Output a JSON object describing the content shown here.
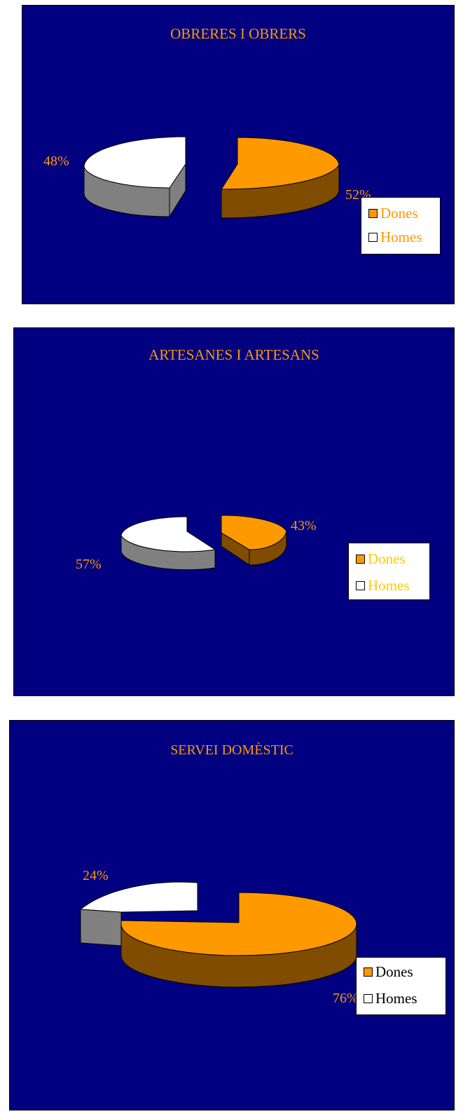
{
  "colors": {
    "background": "#000080",
    "dones_top": "#FF9900",
    "dones_side": "#7F4C00",
    "homes_top": "#FFFFFF",
    "homes_side": "#808080",
    "accent_text": "#FF9900",
    "label_yellow": "#FFCC00"
  },
  "chart_data": [
    {
      "type": "pie",
      "title": "OBRERES I OBRERS",
      "legend_position": "right",
      "series": [
        {
          "name": "Dones",
          "value": 52,
          "label": "52%"
        },
        {
          "name": "Homes",
          "value": 48,
          "label": "48%"
        }
      ]
    },
    {
      "type": "pie",
      "title": "ARTESANES I ARTESANS",
      "legend_position": "right",
      "series": [
        {
          "name": "Dones",
          "value": 43,
          "label": "43%"
        },
        {
          "name": "Homes",
          "value": 57,
          "label": "57%"
        }
      ]
    },
    {
      "type": "pie",
      "title": "SERVEI DOMÈSTIC",
      "legend_position": "right",
      "series": [
        {
          "name": "Dones",
          "value": 76,
          "label": "76%"
        },
        {
          "name": "Homes",
          "value": 24,
          "label": "24%"
        }
      ]
    }
  ]
}
